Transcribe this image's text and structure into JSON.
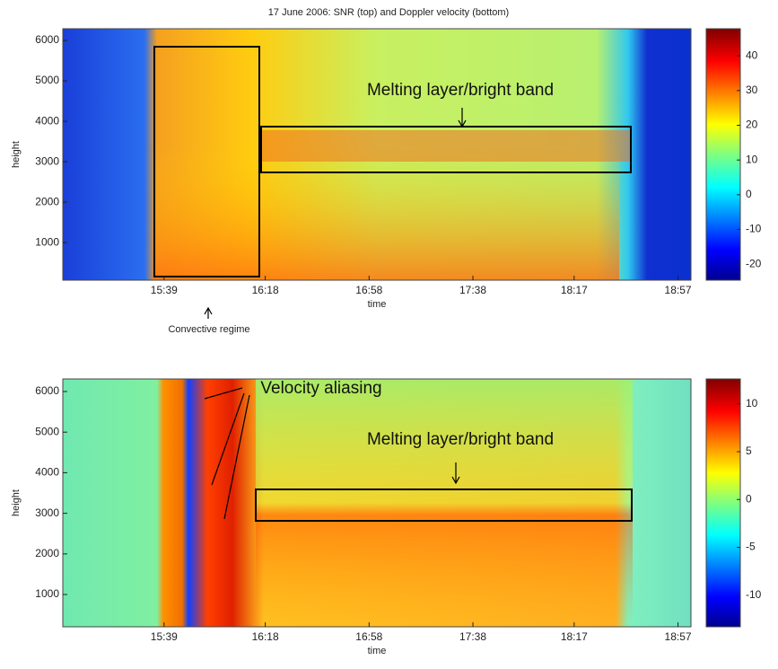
{
  "title": "17 June 2006: SNR (top) and Doppler velocity (bottom)",
  "chart_data": [
    {
      "type": "heatmap",
      "xlabel": "time",
      "ylabel": "height",
      "xlim": [
        900,
        1142
      ],
      "xticks": [
        {
          "value": 939,
          "label": "15:39"
        },
        {
          "value": 978,
          "label": "16:18"
        },
        {
          "value": 1018,
          "label": "16:58"
        },
        {
          "value": 1058,
          "label": "17:38"
        },
        {
          "value": 1097,
          "label": "18:17"
        },
        {
          "value": 1137,
          "label": "18:57"
        }
      ],
      "ylim": [
        70,
        6290
      ],
      "yticks": [
        1000,
        2000,
        3000,
        4000,
        5000,
        6000
      ],
      "clim": [
        -24.6,
        47.8
      ],
      "cticks": [
        -20,
        -10,
        0,
        10,
        20,
        30,
        40
      ],
      "annotations": [
        "Melting layer/bright band",
        "Convective regime"
      ]
    },
    {
      "type": "heatmap",
      "xlabel": "time",
      "ylabel": "height",
      "xlim": [
        900,
        1142
      ],
      "xticks": [
        {
          "value": 939,
          "label": "15:39"
        },
        {
          "value": 978,
          "label": "16:18"
        },
        {
          "value": 1018,
          "label": "16:58"
        },
        {
          "value": 1058,
          "label": "17:38"
        },
        {
          "value": 1097,
          "label": "18:17"
        },
        {
          "value": 1137,
          "label": "18:57"
        }
      ],
      "ylim": [
        204,
        6310
      ],
      "yticks": [
        1000,
        2000,
        3000,
        4000,
        5000,
        6000
      ],
      "clim": [
        -13.3,
        12.6
      ],
      "cticks": [
        -10,
        -5,
        0,
        5,
        10
      ],
      "annotations": [
        "Velocity aliasing",
        "Melting layer/bright band"
      ]
    }
  ]
}
